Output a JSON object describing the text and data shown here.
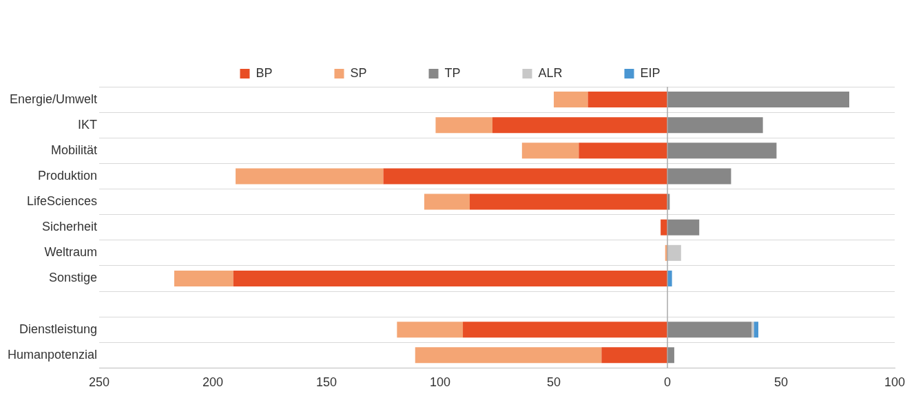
{
  "chart_data": {
    "type": "bar",
    "orientation": "horizontal",
    "stacked": true,
    "categories": [
      "Energie/Umwelt",
      "IKT",
      "Mobilität",
      "Produktion",
      "LifeSciences",
      "Sicherheit",
      "Weltraum",
      "Sonstige",
      null,
      "Dienstleistung",
      "Humanpotenzial"
    ],
    "series": [
      {
        "name": "BP",
        "color": "#e84e25",
        "values": [
          -35,
          -77,
          -39,
          -125,
          -87,
          -3,
          0,
          -191,
          null,
          -90,
          -29
        ]
      },
      {
        "name": "SP",
        "color": "#f4a574",
        "values": [
          -15,
          -25,
          -25,
          -65,
          -20,
          0,
          -1,
          -26,
          null,
          -29,
          -82
        ]
      },
      {
        "name": "TP",
        "color": "#878787",
        "values": [
          80,
          42,
          48,
          28,
          1,
          14,
          0,
          0,
          null,
          37,
          3
        ]
      },
      {
        "name": "ALR",
        "color": "#c8c8c8",
        "values": [
          0,
          0,
          0,
          0,
          0,
          0,
          6,
          0,
          null,
          1,
          0
        ]
      },
      {
        "name": "EIP",
        "color": "#4a96d2",
        "values": [
          0,
          0,
          0,
          0,
          0,
          0,
          0,
          2,
          null,
          2,
          0
        ]
      }
    ],
    "xlim": [
      -250,
      100
    ],
    "xticks": [
      {
        "value": -250,
        "label": "250"
      },
      {
        "value": -200,
        "label": "200"
      },
      {
        "value": -150,
        "label": "150"
      },
      {
        "value": -100,
        "label": "100"
      },
      {
        "value": -50,
        "label": "50"
      },
      0,
      50,
      100
    ],
    "ref_lines": [
      {
        "axis": "x",
        "value": 0,
        "color": "#aaaaaa"
      }
    ],
    "grid": "y",
    "legend": "top"
  }
}
